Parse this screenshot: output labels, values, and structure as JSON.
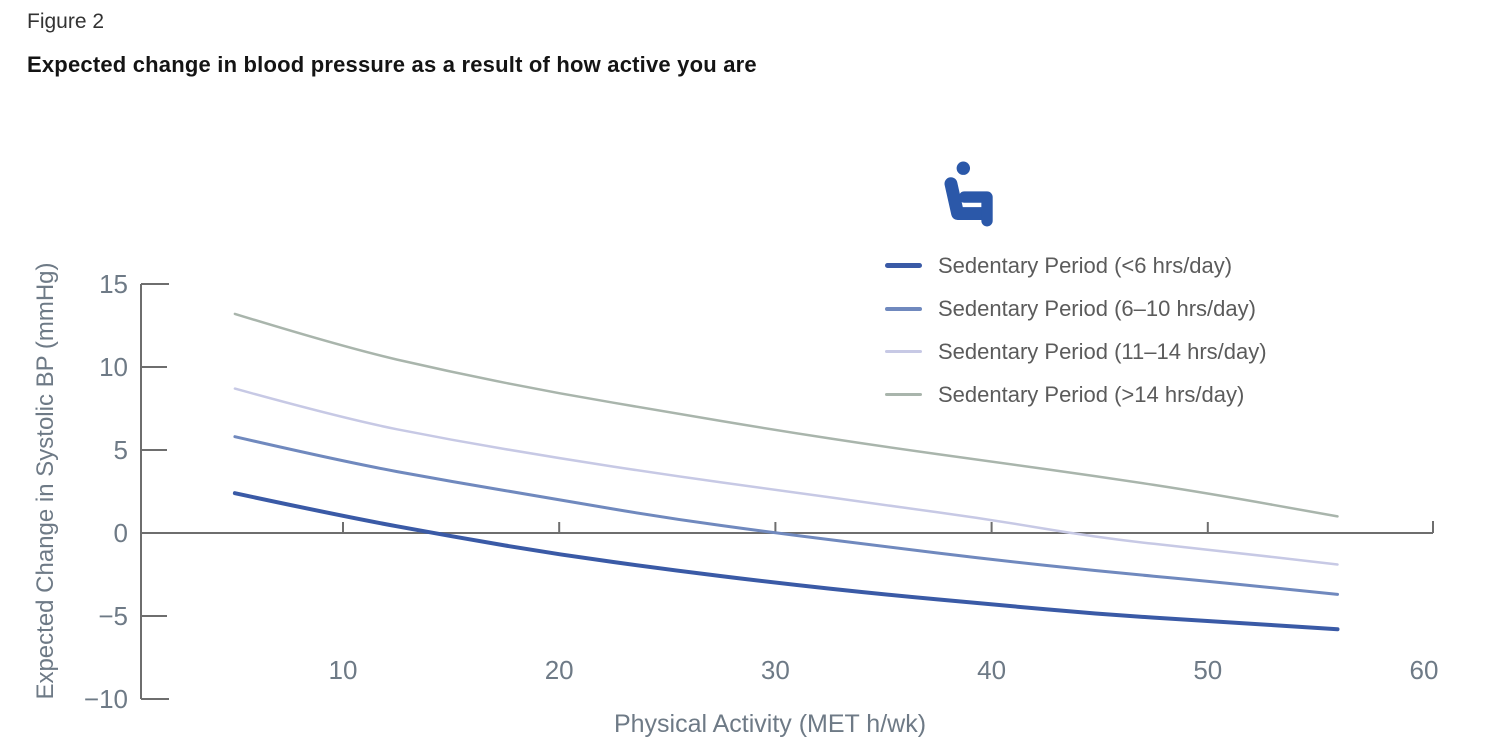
{
  "figure": {
    "label": "Figure 2",
    "title": "Expected change in blood pressure as a result of how active you are"
  },
  "chart_data": {
    "type": "line",
    "title": "Expected change in blood pressure as a result of how active you are",
    "xlabel": "Physical Activity (MET h/wk)",
    "ylabel": "Expected Change in Systolic BP (mmHg)",
    "xlim": [
      1,
      60.5
    ],
    "ylim": [
      -10,
      15
    ],
    "x_ticks": [
      10,
      20,
      30,
      40,
      50,
      60
    ],
    "y_ticks": [
      15,
      10,
      5,
      0,
      -5,
      -10
    ],
    "grid": false,
    "legend_position": "top-right",
    "legend_icon": "seated-person-icon",
    "x": [
      5,
      10,
      15,
      20,
      25,
      30,
      35,
      40,
      45,
      50,
      56
    ],
    "series": [
      {
        "name": "Sedentary Period (<6 hrs/day)",
        "color": "#3A5AA6",
        "line_width": 4,
        "values": [
          2.4,
          1.0,
          -0.2,
          -1.3,
          -2.2,
          -3.0,
          -3.7,
          -4.3,
          -4.9,
          -5.3,
          -5.8
        ]
      },
      {
        "name": "Sedentary Period (6–10 hrs/day)",
        "color": "#7089BE",
        "line_width": 3,
        "values": [
          5.8,
          4.3,
          3.1,
          2.0,
          0.9,
          0.0,
          -0.8,
          -1.6,
          -2.3,
          -2.9,
          -3.7
        ]
      },
      {
        "name": "Sedentary Period (11–14 hrs/day)",
        "color": "#C7C9E5",
        "line_width": 2.5,
        "values": [
          8.7,
          6.9,
          5.6,
          4.5,
          3.5,
          2.6,
          1.7,
          0.8,
          -0.3,
          -1.0,
          -1.9
        ]
      },
      {
        "name": "Sedentary Period (>14 hrs/day)",
        "color": "#A9B5AC",
        "line_width": 2.5,
        "values": [
          13.2,
          11.2,
          9.7,
          8.4,
          7.3,
          6.2,
          5.2,
          4.3,
          3.4,
          2.4,
          1.0
        ]
      }
    ],
    "colors": {
      "icon": "#2B58A9",
      "axis": "#6E6E6E",
      "tick_label": "#6E7A86",
      "legend_text": "#5B5B5B"
    }
  }
}
